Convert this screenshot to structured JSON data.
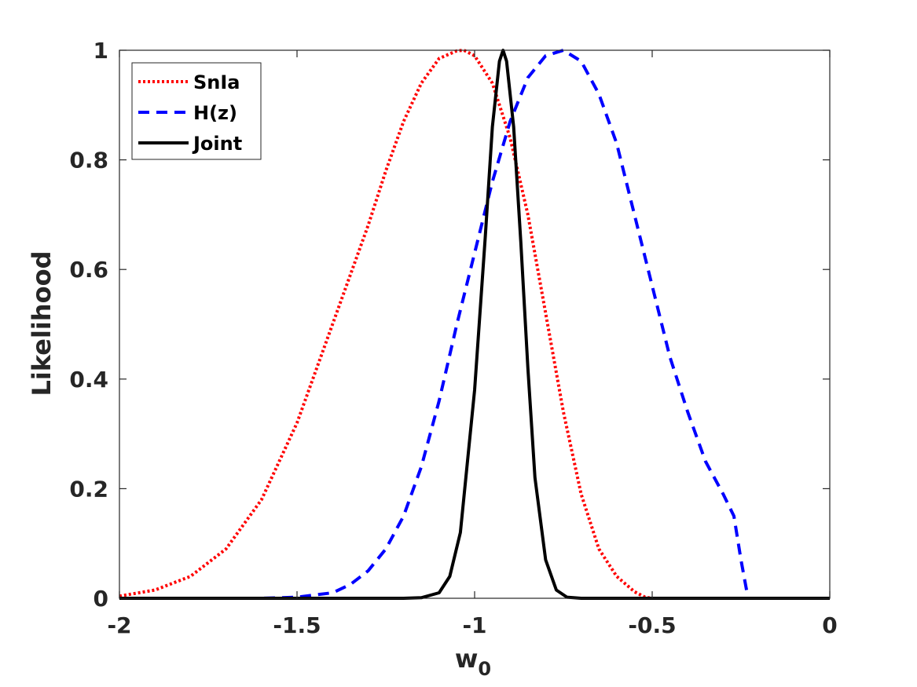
{
  "chart_data": {
    "type": "line",
    "title": "",
    "xlabel": "w",
    "xlabel_subscript": "0",
    "ylabel": "Likelihood",
    "xlim": [
      -2,
      0
    ],
    "ylim": [
      0,
      1
    ],
    "xticks": [
      -2,
      -1.5,
      -1,
      -0.5,
      0
    ],
    "xtick_labels": [
      "-2",
      "-1.5",
      "-1",
      "-0.5",
      "0"
    ],
    "yticks": [
      0,
      0.2,
      0.4,
      0.6,
      0.8,
      1
    ],
    "ytick_labels": [
      "0",
      "0.2",
      "0.4",
      "0.6",
      "0.8",
      "1"
    ],
    "grid": false,
    "legend_position": "top-left",
    "series": [
      {
        "name": "SnIa",
        "color": "#ff0000",
        "style": "dotted",
        "x": [
          -2.0,
          -1.9,
          -1.8,
          -1.7,
          -1.6,
          -1.5,
          -1.4,
          -1.3,
          -1.25,
          -1.2,
          -1.15,
          -1.1,
          -1.05,
          -1.03,
          -1.0,
          -0.95,
          -0.9,
          -0.85,
          -0.8,
          -0.75,
          -0.7,
          -0.65,
          -0.6,
          -0.55,
          -0.52,
          -0.5,
          0.0
        ],
        "y": [
          0.004,
          0.015,
          0.04,
          0.09,
          0.18,
          0.32,
          0.5,
          0.68,
          0.78,
          0.87,
          0.94,
          0.985,
          0.999,
          1.0,
          0.99,
          0.94,
          0.84,
          0.7,
          0.52,
          0.34,
          0.19,
          0.09,
          0.04,
          0.012,
          0.002,
          0.0,
          0.0
        ]
      },
      {
        "name": "H(z)",
        "color": "#0000ff",
        "style": "dashed",
        "x": [
          -2.0,
          -1.6,
          -1.5,
          -1.4,
          -1.35,
          -1.3,
          -1.25,
          -1.2,
          -1.15,
          -1.1,
          -1.05,
          -1.0,
          -0.95,
          -0.9,
          -0.85,
          -0.8,
          -0.75,
          -0.7,
          -0.65,
          -0.6,
          -0.55,
          -0.5,
          -0.45,
          -0.4,
          -0.35,
          -0.3,
          -0.27,
          -0.25,
          -0.23,
          0.0
        ],
        "y": [
          0.0,
          0.0,
          0.002,
          0.01,
          0.025,
          0.05,
          0.09,
          0.15,
          0.24,
          0.36,
          0.5,
          0.63,
          0.76,
          0.87,
          0.95,
          0.99,
          1.0,
          0.98,
          0.92,
          0.83,
          0.7,
          0.57,
          0.44,
          0.34,
          0.25,
          0.19,
          0.15,
          0.07,
          0.0,
          0.0
        ]
      },
      {
        "name": "Joint",
        "color": "#000000",
        "style": "solid",
        "x": [
          -2.0,
          -1.2,
          -1.15,
          -1.1,
          -1.07,
          -1.04,
          -1.0,
          -0.97,
          -0.95,
          -0.93,
          -0.92,
          -0.91,
          -0.89,
          -0.87,
          -0.85,
          -0.83,
          -0.8,
          -0.77,
          -0.74,
          -0.7,
          0.0
        ],
        "y": [
          0.0,
          0.0,
          0.001,
          0.01,
          0.04,
          0.12,
          0.38,
          0.66,
          0.86,
          0.98,
          1.0,
          0.98,
          0.86,
          0.65,
          0.42,
          0.22,
          0.07,
          0.015,
          0.002,
          0.0,
          0.0
        ]
      }
    ]
  }
}
